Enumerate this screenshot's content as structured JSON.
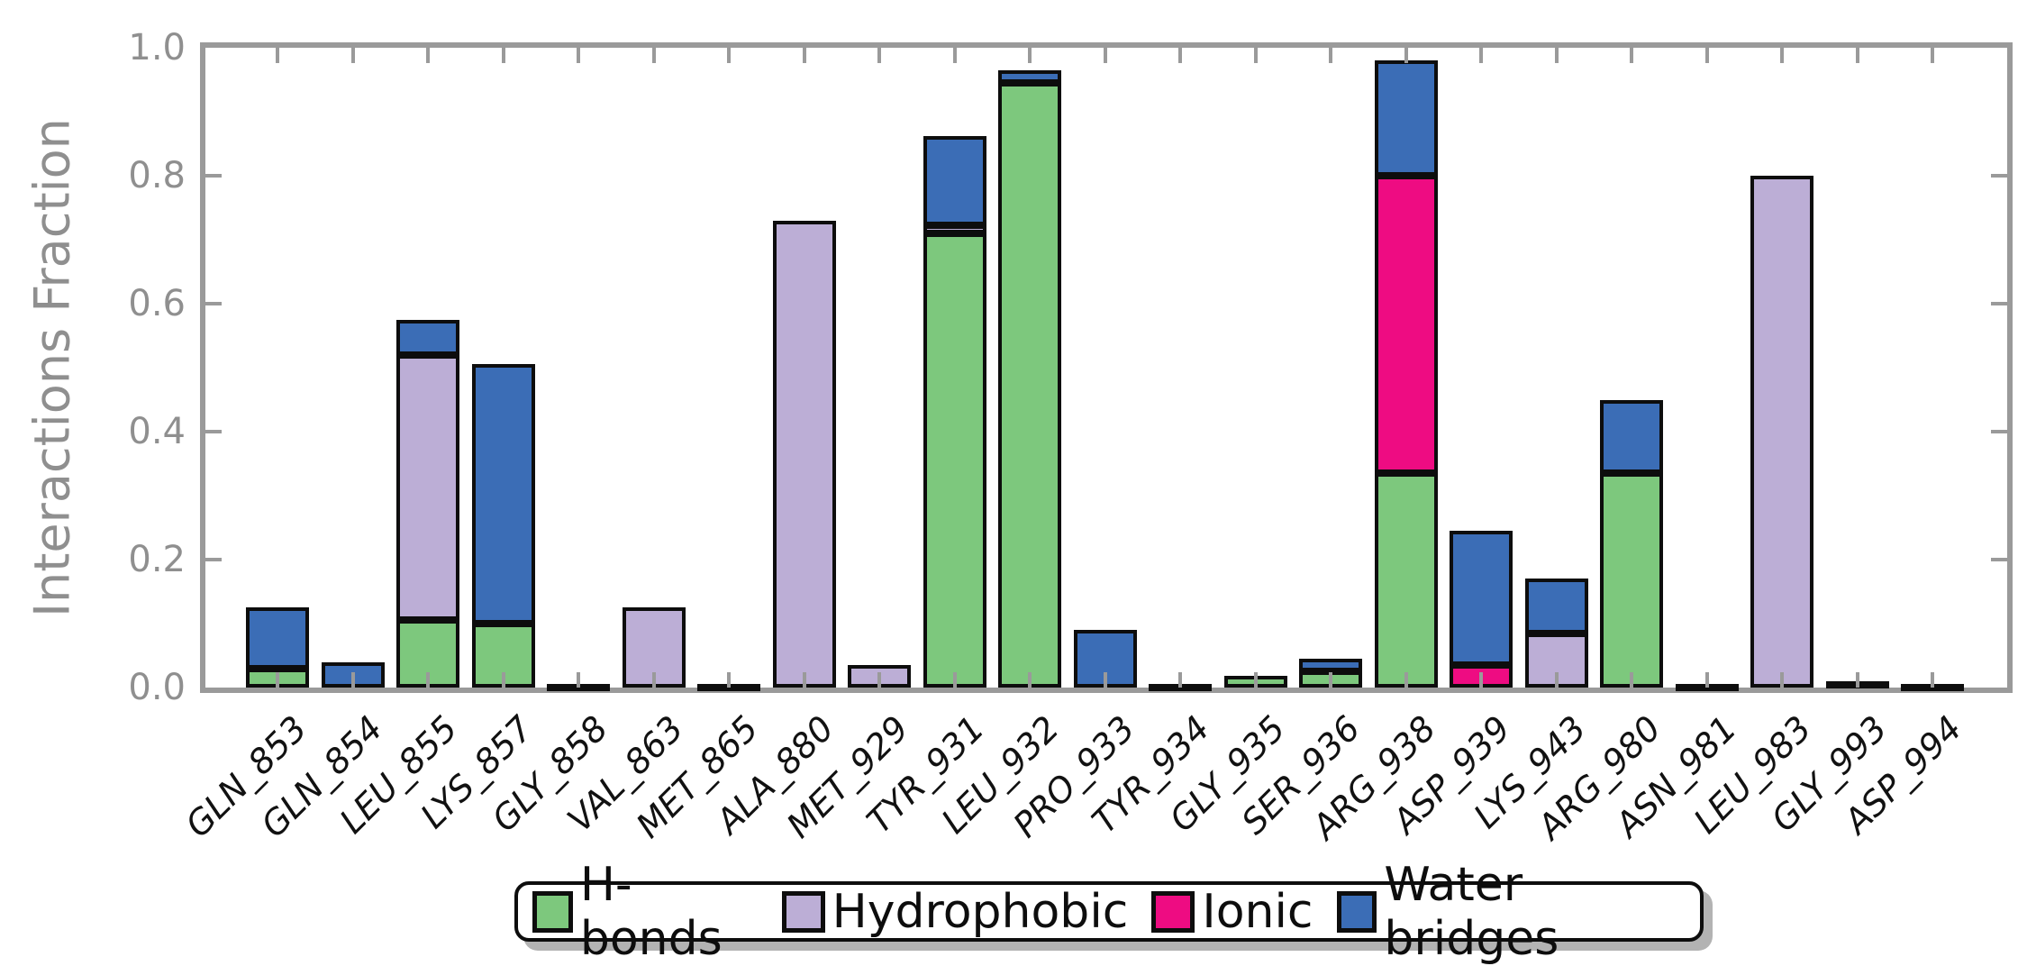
{
  "chart_data": {
    "type": "bar",
    "stacked": true,
    "title": "",
    "xlabel": "",
    "ylabel": "Interactions Fraction",
    "ylim": [
      0,
      1.0
    ],
    "yticks": [
      "0.0",
      "0.2",
      "0.4",
      "0.6",
      "0.8",
      "1.0"
    ],
    "grid": false,
    "legend_position": "bottom",
    "colors": {
      "axis": "#9a9a9a",
      "tick_labels": "#8f8f8f",
      "x_labels": "#111111",
      "bar_edge": "#0d0d0d",
      "legend_shadow": "#b3b3b3"
    },
    "categories": [
      "GLN_853",
      "GLN_854",
      "LEU_855",
      "LYS_857",
      "GLY_858",
      "VAL_863",
      "MET_865",
      "ALA_880",
      "MET_929",
      "TYR_931",
      "LEU_932",
      "PRO_933",
      "TYR_934",
      "GLY_935",
      "SER_936",
      "ARG_938",
      "ASP_939",
      "LYS_943",
      "ARG_980",
      "ASN_981",
      "LEU_983",
      "GLY_993",
      "ASP_994"
    ],
    "series": [
      {
        "name": "H-bonds",
        "color": "#7dc87d",
        "values": [
          0.03,
          0,
          0.105,
          0.1,
          0.006,
          0,
          0,
          0,
          0,
          0.71,
          0.945,
          0,
          0,
          0.018,
          0.025,
          0.335,
          0,
          0,
          0.335,
          0.006,
          0,
          0,
          0
        ]
      },
      {
        "name": "Hydrophobic",
        "color": "#bcaed6",
        "values": [
          0,
          0,
          0.415,
          0,
          0,
          0.125,
          0.005,
          0.73,
          0.035,
          0.012,
          0,
          0,
          0.005,
          0,
          0,
          0,
          0,
          0.085,
          0,
          0,
          0.8,
          0,
          0.005
        ]
      },
      {
        "name": "Ionic",
        "color": "#ee0c82",
        "values": [
          0,
          0,
          0,
          0,
          0,
          0,
          0,
          0,
          0,
          0,
          0,
          0,
          0,
          0,
          0,
          0.465,
          0.035,
          0,
          0,
          0,
          0,
          0,
          0
        ]
      },
      {
        "name": "Water bridges",
        "color": "#3b6db6",
        "values": [
          0.095,
          0.04,
          0.055,
          0.405,
          0,
          0,
          0,
          0,
          0,
          0.14,
          0.02,
          0.09,
          0,
          0,
          0.02,
          0.18,
          0.21,
          0.085,
          0.115,
          0,
          0,
          0.01,
          0
        ]
      }
    ]
  }
}
